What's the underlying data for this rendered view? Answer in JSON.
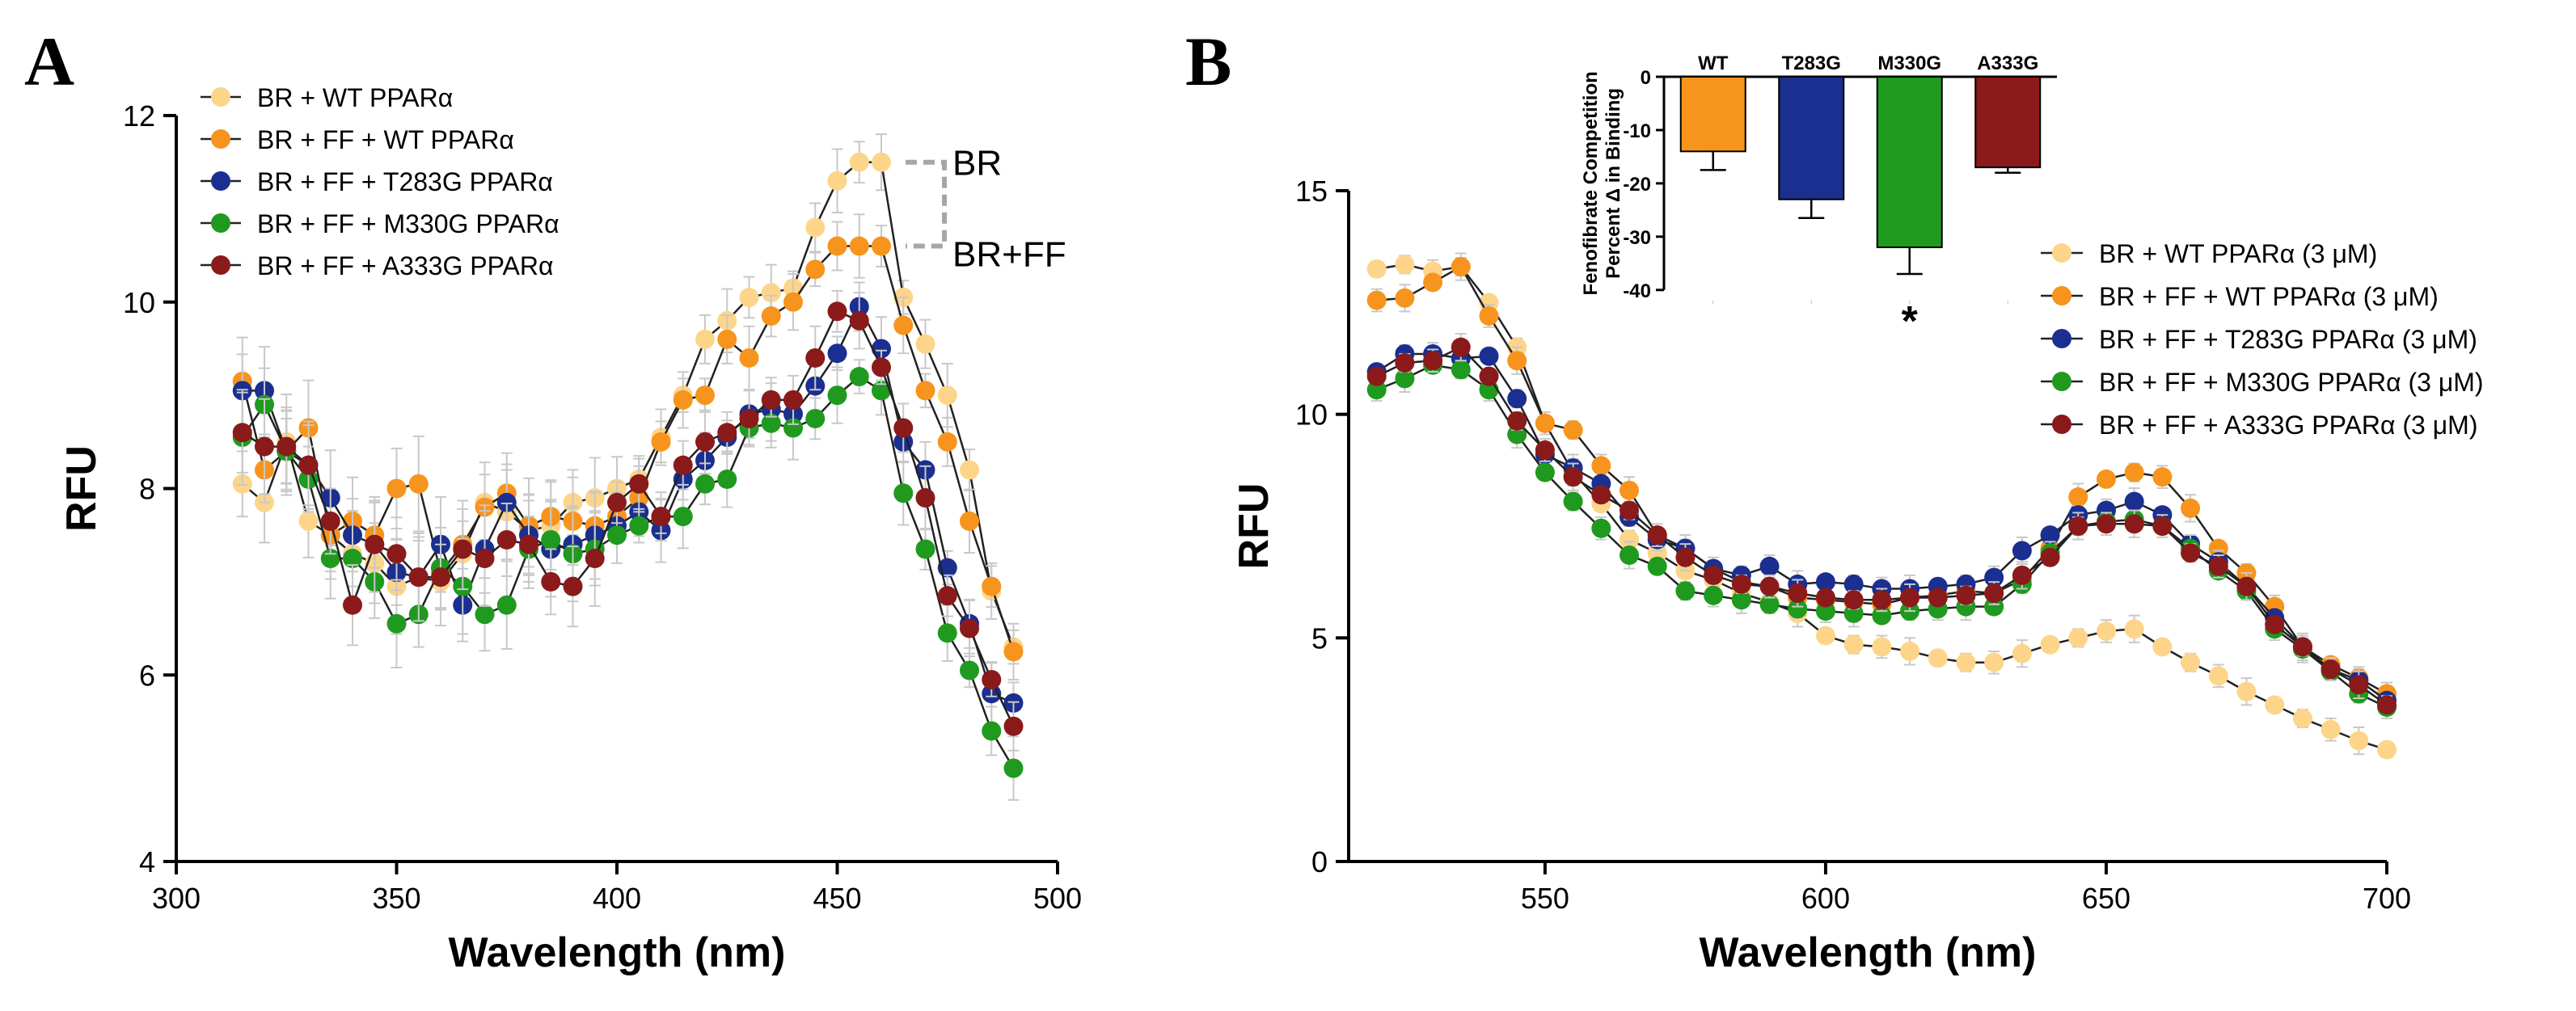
{
  "figure": {
    "panelA_label": "A",
    "panelB_label": "B"
  },
  "chart_data": [
    {
      "panel": "A",
      "type": "line",
      "xlabel": "Wavelength (nm)",
      "ylabel": "RFU",
      "xlim": [
        300,
        500
      ],
      "ylim": [
        4,
        12
      ],
      "xticks": [
        300,
        350,
        400,
        450,
        500
      ],
      "yticks": [
        4,
        6,
        8,
        10,
        12
      ],
      "grid": false,
      "legend_position": "top-left",
      "x": [
        315,
        320,
        325,
        330,
        335,
        340,
        345,
        350,
        355,
        360,
        365,
        370,
        375,
        380,
        385,
        390,
        395,
        400,
        405,
        410,
        415,
        420,
        425,
        430,
        435,
        440,
        445,
        450,
        455,
        460,
        465,
        470,
        475,
        480,
        485,
        490
      ],
      "series": [
        {
          "name": "BR + WT PPARα",
          "color": "#FDD58A",
          "values": [
            8.05,
            7.85,
            8.5,
            7.65,
            7.5,
            7.3,
            7.2,
            6.95,
            7.05,
            7.0,
            7.3,
            7.85,
            7.75,
            7.55,
            7.6,
            7.85,
            7.9,
            8.0,
            8.1,
            8.55,
            9.0,
            9.6,
            9.8,
            10.05,
            10.1,
            10.15,
            10.8,
            11.3,
            11.5,
            11.5,
            10.05,
            9.55,
            9.0,
            8.2,
            6.9,
            6.3
          ]
        },
        {
          "name": "BR + FF + WT PPARα",
          "color": "#F7941D",
          "values": [
            9.15,
            8.2,
            8.4,
            8.65,
            7.5,
            7.65,
            7.5,
            8.0,
            8.05,
            7.1,
            7.4,
            7.8,
            7.95,
            7.6,
            7.7,
            7.65,
            7.6,
            7.7,
            7.9,
            8.5,
            8.95,
            9.0,
            9.6,
            9.4,
            9.85,
            10.0,
            10.35,
            10.6,
            10.6,
            10.6,
            9.75,
            9.05,
            8.5,
            7.65,
            6.95,
            6.25
          ]
        },
        {
          "name": "BR + FF + T283G PPARα",
          "color": "#1A2F8F",
          "values": [
            9.05,
            9.05,
            8.4,
            8.25,
            7.9,
            7.5,
            7.4,
            7.1,
            7.05,
            7.4,
            6.75,
            7.35,
            7.85,
            7.5,
            7.35,
            7.4,
            7.5,
            7.6,
            7.75,
            7.55,
            8.1,
            8.3,
            8.55,
            8.8,
            8.85,
            8.8,
            9.1,
            9.45,
            9.95,
            9.5,
            8.5,
            8.2,
            7.15,
            6.55,
            5.8,
            5.7
          ]
        },
        {
          "name": "BR + FF + M330G PPARα",
          "color": "#1F9A1F",
          "values": [
            8.55,
            8.9,
            8.4,
            8.1,
            7.25,
            7.25,
            7.0,
            6.55,
            6.65,
            7.15,
            6.95,
            6.65,
            6.75,
            7.35,
            7.45,
            7.3,
            7.35,
            7.5,
            7.6,
            7.7,
            7.7,
            8.05,
            8.1,
            8.65,
            8.7,
            8.65,
            8.75,
            9.0,
            9.2,
            9.05,
            7.95,
            7.35,
            6.45,
            6.05,
            5.4,
            5.0
          ]
        },
        {
          "name": "BR + FF + A333G PPARα",
          "color": "#8B1A1A",
          "values": [
            8.6,
            8.45,
            8.45,
            8.25,
            7.65,
            6.75,
            7.4,
            7.3,
            7.05,
            7.05,
            7.35,
            7.25,
            7.45,
            7.4,
            7.0,
            6.95,
            7.25,
            7.85,
            8.05,
            7.7,
            8.25,
            8.5,
            8.6,
            8.75,
            8.95,
            8.95,
            9.4,
            9.9,
            9.8,
            9.3,
            8.65,
            7.9,
            6.85,
            6.5,
            5.95,
            5.45
          ]
        }
      ],
      "annotations": [
        {
          "text": "BR"
        },
        {
          "text": "BR+FF"
        }
      ]
    },
    {
      "panel": "B",
      "type": "line",
      "xlabel": "Wavelength (nm)",
      "ylabel": "RFU",
      "xlim": [
        515,
        700
      ],
      "ylim": [
        0,
        15
      ],
      "xticks": [
        550,
        600,
        650,
        700
      ],
      "yticks": [
        0,
        5,
        10,
        15
      ],
      "grid": false,
      "legend_position": "right",
      "x": [
        520,
        525,
        530,
        535,
        540,
        545,
        550,
        555,
        560,
        565,
        570,
        575,
        580,
        585,
        590,
        595,
        600,
        605,
        610,
        615,
        620,
        625,
        630,
        635,
        640,
        645,
        650,
        655,
        660,
        665,
        670,
        675,
        680,
        685,
        690,
        695,
        700
      ],
      "series": [
        {
          "name": "BR + WT PPARα (3 μM)",
          "color": "#FDD58A",
          "values": [
            13.25,
            13.35,
            13.2,
            13.3,
            12.5,
            11.5,
            9.8,
            8.7,
            8.0,
            7.2,
            6.9,
            6.5,
            6.3,
            6.0,
            5.8,
            5.55,
            5.05,
            4.85,
            4.8,
            4.7,
            4.55,
            4.45,
            4.45,
            4.65,
            4.85,
            5.0,
            5.15,
            5.2,
            4.8,
            4.45,
            4.15,
            3.8,
            3.5,
            3.2,
            2.95,
            2.7,
            2.5
          ]
        },
        {
          "name": "BR + FF + WT PPARα (3 μM)",
          "color": "#F7941D",
          "values": [
            12.55,
            12.6,
            12.95,
            13.3,
            12.2,
            11.2,
            9.8,
            9.65,
            8.85,
            8.3,
            7.3,
            7.0,
            6.55,
            6.25,
            6.15,
            5.9,
            5.85,
            5.8,
            5.75,
            5.9,
            5.95,
            6.05,
            6.0,
            6.3,
            7.0,
            8.15,
            8.55,
            8.7,
            8.6,
            7.9,
            7.0,
            6.45,
            5.7,
            4.8,
            4.4,
            4.1,
            3.75
          ]
        },
        {
          "name": "BR + FF + T283G PPARα (3 μM)",
          "color": "#1A2F8F",
          "values": [
            10.95,
            11.35,
            11.35,
            11.25,
            11.3,
            10.35,
            9.1,
            8.8,
            8.45,
            7.7,
            7.2,
            7.0,
            6.55,
            6.4,
            6.6,
            6.2,
            6.25,
            6.2,
            6.1,
            6.1,
            6.15,
            6.2,
            6.35,
            6.95,
            7.3,
            7.75,
            7.85,
            8.05,
            7.75,
            7.1,
            6.7,
            6.15,
            5.45,
            4.8,
            4.3,
            4.05,
            3.6
          ]
        },
        {
          "name": "BR + FF + M330G PPARα (3 μM)",
          "color": "#1F9A1F",
          "values": [
            10.55,
            10.8,
            11.1,
            11.0,
            10.55,
            9.55,
            8.7,
            8.05,
            7.45,
            6.85,
            6.6,
            6.05,
            5.95,
            5.85,
            5.75,
            5.65,
            5.6,
            5.55,
            5.5,
            5.6,
            5.65,
            5.7,
            5.7,
            6.2,
            6.9,
            7.5,
            7.6,
            7.65,
            7.5,
            7.0,
            6.5,
            6.05,
            5.2,
            4.75,
            4.25,
            3.75,
            3.45
          ]
        },
        {
          "name": "BR + FF + A333G PPARα (3 μM)",
          "color": "#8B1A1A",
          "values": [
            10.85,
            11.15,
            11.2,
            11.5,
            10.85,
            9.85,
            9.2,
            8.6,
            8.2,
            7.85,
            7.3,
            6.8,
            6.4,
            6.2,
            6.15,
            6.0,
            5.9,
            5.85,
            5.85,
            5.9,
            5.9,
            5.95,
            6.0,
            6.4,
            6.8,
            7.5,
            7.55,
            7.55,
            7.5,
            6.9,
            6.6,
            6.15,
            5.3,
            4.8,
            4.3,
            3.95,
            3.5
          ]
        }
      ]
    },
    {
      "panel": "B-inset",
      "type": "bar",
      "ylabel_line1": "Fenofibrate Competition",
      "ylabel_line2": "Percent Δ in Binding",
      "categories": [
        "WT",
        "T283G",
        "M330G",
        "A333G"
      ],
      "values": [
        -14,
        -23,
        -32,
        -17
      ],
      "errors": [
        3.5,
        3.5,
        5,
        1
      ],
      "colors": [
        "#F7941D",
        "#1A2F8F",
        "#1F9A1F",
        "#8B1A1A"
      ],
      "ylim": [
        -42,
        0
      ],
      "yticks": [
        0,
        -10,
        -20,
        -30,
        -40
      ],
      "significance": {
        "category": "M330G",
        "text": "*"
      }
    }
  ]
}
